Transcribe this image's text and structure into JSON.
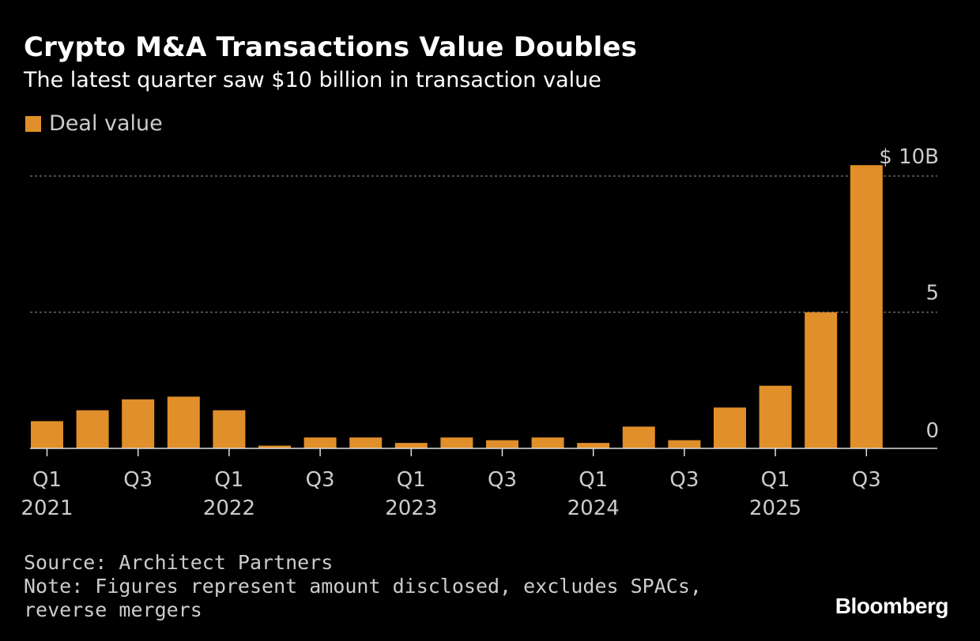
{
  "header": {
    "title": "Crypto M&A Transactions Value Doubles",
    "subtitle": "The latest quarter saw $10 billion in transaction value"
  },
  "colors": {
    "bar": "#E08F2A",
    "background": "#000000",
    "grid": "#666666",
    "axis_text": "#CCCCCC"
  },
  "chart_data": {
    "type": "bar",
    "title": "Crypto M&A Transactions Value Doubles",
    "subtitle": "The latest quarter saw $10 billion in transaction value",
    "legend": [
      "Deal value"
    ],
    "legend_position": "top-left",
    "xlabel": "",
    "ylabel": "",
    "unit": "$ billions",
    "categories": [
      "2021 Q1",
      "2021 Q2",
      "2021 Q3",
      "2021 Q4",
      "2022 Q1",
      "2022 Q2",
      "2022 Q3",
      "2022 Q4",
      "2023 Q1",
      "2023 Q2",
      "2023 Q3",
      "2023 Q4",
      "2024 Q1",
      "2024 Q2",
      "2024 Q3",
      "2024 Q4",
      "2025 Q1",
      "2025 Q2",
      "2025 Q3"
    ],
    "series": [
      {
        "name": "Deal value",
        "values": [
          1.0,
          1.4,
          1.8,
          1.9,
          1.4,
          0.1,
          0.4,
          0.4,
          0.2,
          0.4,
          0.3,
          0.4,
          0.2,
          0.8,
          0.3,
          1.5,
          2.3,
          5.0,
          10.4
        ]
      }
    ],
    "ylim": [
      0,
      10.4
    ],
    "yticks": [
      {
        "value": 0,
        "label": "0"
      },
      {
        "value": 5,
        "label": "5"
      },
      {
        "value": 10,
        "label": "$ 10B"
      }
    ],
    "xtick_labels": [
      {
        "index": 0,
        "quarter": "Q1",
        "year": "2021"
      },
      {
        "index": 2,
        "quarter": "Q3",
        "year": ""
      },
      {
        "index": 4,
        "quarter": "Q1",
        "year": "2022"
      },
      {
        "index": 6,
        "quarter": "Q3",
        "year": ""
      },
      {
        "index": 8,
        "quarter": "Q1",
        "year": "2023"
      },
      {
        "index": 10,
        "quarter": "Q3",
        "year": ""
      },
      {
        "index": 12,
        "quarter": "Q1",
        "year": "2024"
      },
      {
        "index": 14,
        "quarter": "Q3",
        "year": ""
      },
      {
        "index": 16,
        "quarter": "Q1",
        "year": "2025"
      },
      {
        "index": 18,
        "quarter": "Q3",
        "year": ""
      }
    ],
    "grid": true
  },
  "footer": {
    "source": "Source: Architect Partners",
    "note_line1": "Note: Figures represent amount disclosed, excludes SPACs,",
    "note_line2": "reverse mergers"
  },
  "brand": "Bloomberg"
}
